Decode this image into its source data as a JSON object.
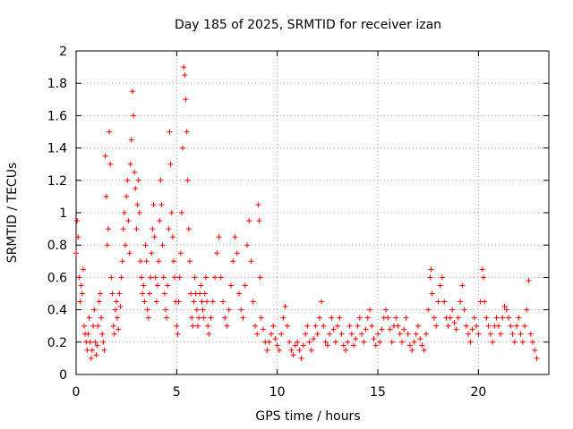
{
  "chart_data": {
    "type": "scatter",
    "title": "Day 185 of 2025, SRMTID for receiver izan",
    "xlabel": "GPS time / hours",
    "ylabel": "SRMTID / TECUs",
    "xlim": [
      0,
      23.5
    ],
    "ylim": [
      0,
      2
    ],
    "xticks": [
      0,
      5,
      10,
      15,
      20
    ],
    "xtick_labels": [
      "0",
      "5",
      "10",
      "15",
      "20"
    ],
    "yticks": [
      0,
      0.2,
      0.4,
      0.6,
      0.8,
      1,
      1.2,
      1.4,
      1.6,
      1.8,
      2
    ],
    "ytick_labels": [
      "0",
      "0.2",
      "0.4",
      "0.6",
      "0.8",
      "1",
      "1.2",
      "1.4",
      "1.6",
      "1.8",
      "2"
    ],
    "grid": true,
    "marker": "+",
    "color": "#ff0000",
    "series": [
      {
        "name": "SRMTID",
        "points": [
          [
            0.0,
            0.75
          ],
          [
            0.05,
            0.95
          ],
          [
            0.1,
            0.85
          ],
          [
            0.15,
            0.6
          ],
          [
            0.2,
            0.45
          ],
          [
            0.25,
            0.55
          ],
          [
            0.3,
            0.5
          ],
          [
            0.35,
            0.65
          ],
          [
            0.4,
            0.3
          ],
          [
            0.45,
            0.25
          ],
          [
            0.5,
            0.2
          ],
          [
            0.55,
            0.15
          ],
          [
            0.6,
            0.25
          ],
          [
            0.65,
            0.35
          ],
          [
            0.7,
            0.2
          ],
          [
            0.75,
            0.1
          ],
          [
            0.8,
            0.15
          ],
          [
            0.85,
            0.3
          ],
          [
            0.9,
            0.4
          ],
          [
            0.95,
            0.2
          ],
          [
            1.0,
            0.12
          ],
          [
            1.05,
            0.18
          ],
          [
            1.1,
            0.3
          ],
          [
            1.15,
            0.45
          ],
          [
            1.2,
            0.5
          ],
          [
            1.25,
            0.35
          ],
          [
            1.3,
            0.25
          ],
          [
            1.35,
            0.2
          ],
          [
            1.4,
            0.15
          ],
          [
            1.45,
            1.35
          ],
          [
            1.5,
            1.1
          ],
          [
            1.55,
            0.8
          ],
          [
            1.6,
            0.9
          ],
          [
            1.65,
            1.5
          ],
          [
            1.7,
            1.3
          ],
          [
            1.75,
            0.6
          ],
          [
            1.8,
            0.5
          ],
          [
            1.85,
            0.3
          ],
          [
            1.9,
            0.25
          ],
          [
            1.95,
            0.4
          ],
          [
            2.0,
            0.45
          ],
          [
            2.05,
            0.35
          ],
          [
            2.1,
            0.28
          ],
          [
            2.15,
            0.5
          ],
          [
            2.2,
            0.42
          ],
          [
            2.25,
            0.6
          ],
          [
            2.3,
            0.7
          ],
          [
            2.35,
            0.9
          ],
          [
            2.4,
            1.0
          ],
          [
            2.45,
            0.8
          ],
          [
            2.5,
            1.1
          ],
          [
            2.55,
            1.2
          ],
          [
            2.6,
            0.95
          ],
          [
            2.65,
            0.75
          ],
          [
            2.7,
            1.3
          ],
          [
            2.75,
            1.45
          ],
          [
            2.8,
            1.75
          ],
          [
            2.85,
            1.6
          ],
          [
            2.9,
            1.25
          ],
          [
            2.95,
            1.15
          ],
          [
            3.0,
            0.9
          ],
          [
            3.05,
            1.05
          ],
          [
            3.1,
            1.2
          ],
          [
            3.15,
            1.0
          ],
          [
            3.2,
            0.7
          ],
          [
            3.25,
            0.6
          ],
          [
            3.3,
            0.5
          ],
          [
            3.35,
            0.55
          ],
          [
            3.4,
            0.45
          ],
          [
            3.45,
            0.8
          ],
          [
            3.5,
            0.7
          ],
          [
            3.55,
            0.4
          ],
          [
            3.6,
            0.35
          ],
          [
            3.65,
            0.5
          ],
          [
            3.7,
            0.6
          ],
          [
            3.75,
            0.75
          ],
          [
            3.8,
            0.9
          ],
          [
            3.85,
            1.05
          ],
          [
            3.9,
            0.85
          ],
          [
            3.95,
            0.6
          ],
          [
            4.0,
            0.45
          ],
          [
            4.05,
            0.55
          ],
          [
            4.1,
            0.7
          ],
          [
            4.15,
            0.95
          ],
          [
            4.2,
            1.2
          ],
          [
            4.25,
            1.05
          ],
          [
            4.3,
            0.8
          ],
          [
            4.35,
            0.6
          ],
          [
            4.4,
            0.5
          ],
          [
            4.45,
            0.4
          ],
          [
            4.5,
            0.35
          ],
          [
            4.55,
            0.55
          ],
          [
            4.6,
            0.9
          ],
          [
            4.65,
            1.5
          ],
          [
            4.7,
            1.3
          ],
          [
            4.75,
            1.0
          ],
          [
            4.8,
            0.85
          ],
          [
            4.85,
            0.7
          ],
          [
            4.9,
            0.6
          ],
          [
            4.95,
            0.45
          ],
          [
            5.0,
            0.3
          ],
          [
            5.05,
            0.25
          ],
          [
            5.1,
            0.45
          ],
          [
            5.15,
            0.6
          ],
          [
            5.2,
            0.75
          ],
          [
            5.25,
            1.0
          ],
          [
            5.3,
            1.4
          ],
          [
            5.35,
            1.9
          ],
          [
            5.4,
            1.85
          ],
          [
            5.45,
            1.7
          ],
          [
            5.5,
            1.5
          ],
          [
            5.55,
            1.2
          ],
          [
            5.6,
            0.9
          ],
          [
            5.65,
            0.7
          ],
          [
            5.7,
            0.5
          ],
          [
            5.75,
            0.35
          ],
          [
            5.8,
            0.3
          ],
          [
            5.85,
            0.45
          ],
          [
            5.9,
            0.6
          ],
          [
            5.95,
            0.5
          ],
          [
            6.0,
            0.4
          ],
          [
            6.05,
            0.3
          ],
          [
            6.1,
            0.35
          ],
          [
            6.15,
            0.5
          ],
          [
            6.2,
            0.55
          ],
          [
            6.25,
            0.45
          ],
          [
            6.3,
            0.4
          ],
          [
            6.35,
            0.35
          ],
          [
            6.4,
            0.5
          ],
          [
            6.45,
            0.6
          ],
          [
            6.5,
            0.45
          ],
          [
            6.55,
            0.3
          ],
          [
            6.6,
            0.25
          ],
          [
            6.7,
            0.35
          ],
          [
            6.8,
            0.45
          ],
          [
            6.9,
            0.6
          ],
          [
            7.0,
            0.75
          ],
          [
            7.1,
            0.85
          ],
          [
            7.2,
            0.6
          ],
          [
            7.3,
            0.45
          ],
          [
            7.4,
            0.35
          ],
          [
            7.5,
            0.3
          ],
          [
            7.6,
            0.4
          ],
          [
            7.7,
            0.55
          ],
          [
            7.8,
            0.7
          ],
          [
            7.9,
            0.85
          ],
          [
            8.0,
            0.75
          ],
          [
            8.1,
            0.5
          ],
          [
            8.2,
            0.4
          ],
          [
            8.3,
            0.35
          ],
          [
            8.4,
            0.55
          ],
          [
            8.5,
            0.8
          ],
          [
            8.6,
            0.95
          ],
          [
            8.7,
            0.7
          ],
          [
            8.8,
            0.45
          ],
          [
            8.9,
            0.3
          ],
          [
            9.0,
            0.25
          ],
          [
            9.05,
            1.05
          ],
          [
            9.1,
            0.95
          ],
          [
            9.15,
            0.6
          ],
          [
            9.2,
            0.35
          ],
          [
            9.3,
            0.28
          ],
          [
            9.4,
            0.2
          ],
          [
            9.5,
            0.15
          ],
          [
            9.6,
            0.2
          ],
          [
            9.7,
            0.25
          ],
          [
            9.8,
            0.3
          ],
          [
            9.9,
            0.22
          ],
          [
            10.0,
            0.18
          ],
          [
            10.1,
            0.15
          ],
          [
            10.2,
            0.25
          ],
          [
            10.3,
            0.35
          ],
          [
            10.4,
            0.42
          ],
          [
            10.5,
            0.3
          ],
          [
            10.6,
            0.2
          ],
          [
            10.7,
            0.15
          ],
          [
            10.8,
            0.12
          ],
          [
            10.9,
            0.18
          ],
          [
            11.0,
            0.2
          ],
          [
            11.1,
            0.15
          ],
          [
            11.2,
            0.1
          ],
          [
            11.3,
            0.18
          ],
          [
            11.4,
            0.25
          ],
          [
            11.5,
            0.3
          ],
          [
            11.6,
            0.2
          ],
          [
            11.7,
            0.15
          ],
          [
            11.8,
            0.22
          ],
          [
            11.9,
            0.3
          ],
          [
            12.0,
            0.25
          ],
          [
            12.1,
            0.35
          ],
          [
            12.2,
            0.45
          ],
          [
            12.3,
            0.3
          ],
          [
            12.4,
            0.2
          ],
          [
            12.5,
            0.18
          ],
          [
            12.6,
            0.25
          ],
          [
            12.7,
            0.35
          ],
          [
            12.8,
            0.28
          ],
          [
            12.9,
            0.2
          ],
          [
            13.0,
            0.3
          ],
          [
            13.1,
            0.35
          ],
          [
            13.2,
            0.25
          ],
          [
            13.3,
            0.18
          ],
          [
            13.4,
            0.15
          ],
          [
            13.5,
            0.2
          ],
          [
            13.6,
            0.3
          ],
          [
            13.7,
            0.25
          ],
          [
            13.8,
            0.18
          ],
          [
            13.9,
            0.22
          ],
          [
            14.0,
            0.3
          ],
          [
            14.1,
            0.35
          ],
          [
            14.2,
            0.25
          ],
          [
            14.3,
            0.2
          ],
          [
            14.4,
            0.28
          ],
          [
            14.5,
            0.35
          ],
          [
            14.6,
            0.4
          ],
          [
            14.7,
            0.3
          ],
          [
            14.8,
            0.22
          ],
          [
            14.9,
            0.18
          ],
          [
            15.0,
            0.25
          ],
          [
            15.1,
            0.2
          ],
          [
            15.2,
            0.28
          ],
          [
            15.3,
            0.35
          ],
          [
            15.4,
            0.4
          ],
          [
            15.5,
            0.35
          ],
          [
            15.6,
            0.28
          ],
          [
            15.7,
            0.2
          ],
          [
            15.8,
            0.3
          ],
          [
            15.9,
            0.35
          ],
          [
            16.0,
            0.3
          ],
          [
            16.1,
            0.25
          ],
          [
            16.2,
            0.2
          ],
          [
            16.3,
            0.28
          ],
          [
            16.4,
            0.35
          ],
          [
            16.5,
            0.25
          ],
          [
            16.6,
            0.18
          ],
          [
            16.7,
            0.15
          ],
          [
            16.8,
            0.2
          ],
          [
            16.9,
            0.25
          ],
          [
            17.0,
            0.3
          ],
          [
            17.1,
            0.22
          ],
          [
            17.2,
            0.18
          ],
          [
            17.3,
            0.15
          ],
          [
            17.4,
            0.25
          ],
          [
            17.5,
            0.4
          ],
          [
            17.6,
            0.6
          ],
          [
            17.65,
            0.65
          ],
          [
            17.7,
            0.5
          ],
          [
            17.8,
            0.35
          ],
          [
            17.9,
            0.3
          ],
          [
            18.0,
            0.45
          ],
          [
            18.1,
            0.55
          ],
          [
            18.2,
            0.6
          ],
          [
            18.3,
            0.45
          ],
          [
            18.4,
            0.35
          ],
          [
            18.5,
            0.3
          ],
          [
            18.6,
            0.35
          ],
          [
            18.7,
            0.4
          ],
          [
            18.8,
            0.32
          ],
          [
            18.9,
            0.28
          ],
          [
            19.0,
            0.35
          ],
          [
            19.1,
            0.45
          ],
          [
            19.2,
            0.55
          ],
          [
            19.3,
            0.4
          ],
          [
            19.4,
            0.3
          ],
          [
            19.5,
            0.25
          ],
          [
            19.6,
            0.2
          ],
          [
            19.7,
            0.28
          ],
          [
            19.8,
            0.35
          ],
          [
            19.9,
            0.3
          ],
          [
            20.0,
            0.25
          ],
          [
            20.1,
            0.45
          ],
          [
            20.2,
            0.65
          ],
          [
            20.25,
            0.6
          ],
          [
            20.3,
            0.45
          ],
          [
            20.4,
            0.35
          ],
          [
            20.5,
            0.3
          ],
          [
            20.6,
            0.25
          ],
          [
            20.7,
            0.2
          ],
          [
            20.8,
            0.3
          ],
          [
            20.9,
            0.35
          ],
          [
            21.0,
            0.3
          ],
          [
            21.1,
            0.25
          ],
          [
            21.2,
            0.35
          ],
          [
            21.3,
            0.42
          ],
          [
            21.4,
            0.4
          ],
          [
            21.5,
            0.35
          ],
          [
            21.6,
            0.3
          ],
          [
            21.7,
            0.25
          ],
          [
            21.8,
            0.2
          ],
          [
            21.9,
            0.3
          ],
          [
            22.0,
            0.35
          ],
          [
            22.1,
            0.25
          ],
          [
            22.2,
            0.2
          ],
          [
            22.3,
            0.3
          ],
          [
            22.4,
            0.4
          ],
          [
            22.5,
            0.58
          ],
          [
            22.6,
            0.25
          ],
          [
            22.7,
            0.2
          ],
          [
            22.8,
            0.15
          ],
          [
            22.9,
            0.1
          ]
        ]
      }
    ]
  }
}
